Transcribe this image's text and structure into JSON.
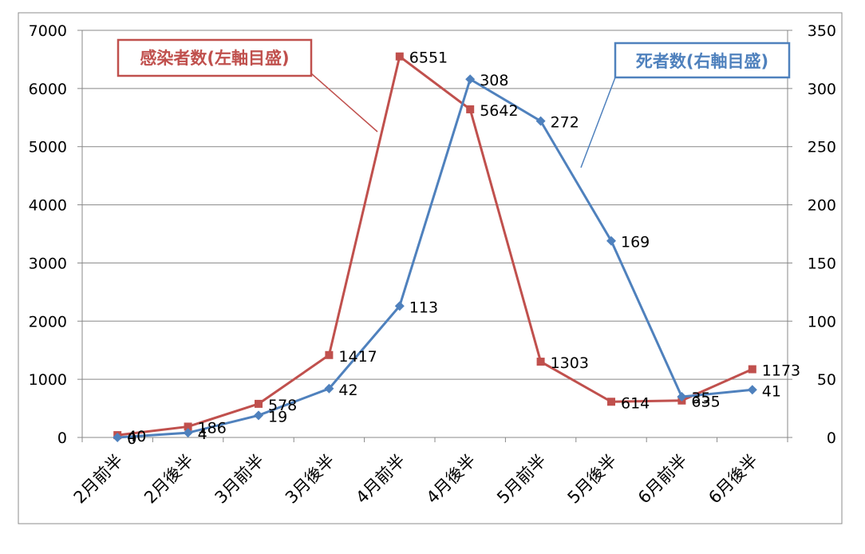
{
  "chart_data": {
    "type": "line",
    "categories": [
      "2月前半",
      "2月後半",
      "3月前半",
      "3月後半",
      "4月前半",
      "4月後半",
      "5月前半",
      "5月後半",
      "6月前半",
      "6月後半"
    ],
    "series": [
      {
        "name": "感染者数(左軸目盛)",
        "axis": "left",
        "color": "#c0504d",
        "marker": "square",
        "values": [
          40,
          186,
          578,
          1417,
          6551,
          5642,
          1303,
          614,
          635,
          1173
        ]
      },
      {
        "name": "死者数(右軸目盛)",
        "axis": "right",
        "color": "#4f81bd",
        "marker": "diamond",
        "values": [
          0,
          4,
          19,
          42,
          113,
          308,
          272,
          169,
          35,
          41
        ]
      }
    ],
    "data_labels": {
      "left": [
        "40",
        "186",
        "578",
        "1417",
        "6551",
        "5642",
        "1303",
        "614",
        "635",
        "1173"
      ],
      "right": [
        "0",
        "4",
        "19",
        "42",
        "113",
        "308",
        "272",
        "169",
        "35",
        "41"
      ]
    },
    "y_left": {
      "min": 0,
      "max": 7000,
      "ticks": [
        "0",
        "1000",
        "2000",
        "3000",
        "4000",
        "5000",
        "6000",
        "7000"
      ]
    },
    "y_right": {
      "min": 0,
      "max": 350,
      "ticks": [
        "0",
        "50",
        "100",
        "150",
        "200",
        "250",
        "300",
        "350"
      ]
    },
    "legend": {
      "left_label": "感染者数(左軸目盛)",
      "right_label": "死者数(右軸目盛)",
      "left_placement": "top-left",
      "right_placement": "top-right"
    },
    "grid": {
      "horizontal": true,
      "vertical": false,
      "color": "#888888"
    }
  }
}
